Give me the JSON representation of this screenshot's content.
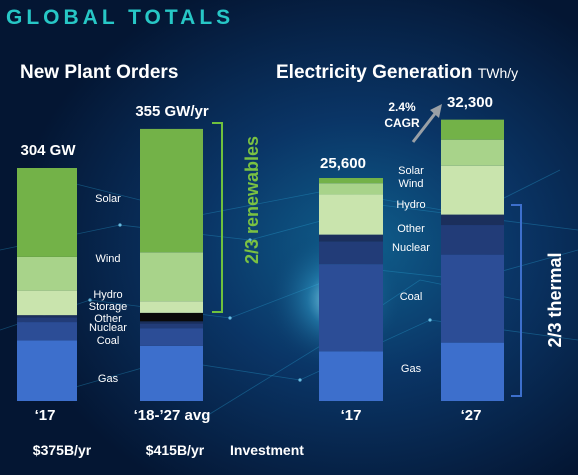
{
  "title": "GLOBAL TOTALS",
  "chart_data": [
    {
      "type": "bar",
      "stacked": true,
      "title": "New Plant Orders",
      "categories": [
        "‘17",
        "‘18-’27 avg"
      ],
      "totals": [
        "304 GW",
        "355 GW/yr"
      ],
      "total_values": [
        304,
        355
      ],
      "series": [
        {
          "name": "Gas",
          "color": "#3d6fcc",
          "values": [
            79,
            72
          ]
        },
        {
          "name": "Coal",
          "color": "#2c4d96",
          "values": [
            24,
            23
          ]
        },
        {
          "name": "Nuclear",
          "color": "#223c78",
          "values": [
            6,
            6
          ]
        },
        {
          "name": "Other",
          "color": "#1b2f5c",
          "values": [
            3,
            3
          ]
        },
        {
          "name": "Storage",
          "color": "#0a0a0a",
          "values": [
            0,
            11
          ]
        },
        {
          "name": "Hydro",
          "color": "#c9e4ad",
          "values": [
            32,
            15
          ]
        },
        {
          "name": "Wind",
          "color": "#a8d38a",
          "values": [
            44,
            64
          ]
        },
        {
          "name": "Solar",
          "color": "#73b248",
          "values": [
            116,
            161
          ]
        }
      ],
      "bracket_label": "2/3 renewables",
      "investment": [
        "$375B/yr",
        "$415B/yr"
      ],
      "investment_label": "Investment"
    },
    {
      "type": "bar",
      "stacked": true,
      "title": "Electricity Generation",
      "unit": "TWh/y",
      "categories": [
        "‘17",
        "‘27"
      ],
      "totals": [
        "25,600",
        "32,300"
      ],
      "total_values": [
        25600,
        32300
      ],
      "series": [
        {
          "name": "Gas",
          "color": "#3d6fcc",
          "values": [
            5700,
            6700
          ]
        },
        {
          "name": "Coal",
          "color": "#2c4d96",
          "values": [
            10000,
            10100
          ]
        },
        {
          "name": "Nuclear",
          "color": "#223c78",
          "values": [
            2600,
            3400
          ]
        },
        {
          "name": "Other",
          "color": "#1b2f5c",
          "values": [
            800,
            1200
          ]
        },
        {
          "name": "Hydro",
          "color": "#c9e4ad",
          "values": [
            4600,
            5600
          ]
        },
        {
          "name": "Wind",
          "color": "#a8d38a",
          "values": [
            1300,
            3000
          ]
        },
        {
          "name": "Solar",
          "color": "#73b248",
          "values": [
            600,
            2300
          ]
        }
      ],
      "growth_label": "2.4%\nCAGR",
      "bracket_label": "2/3 thermal"
    }
  ]
}
